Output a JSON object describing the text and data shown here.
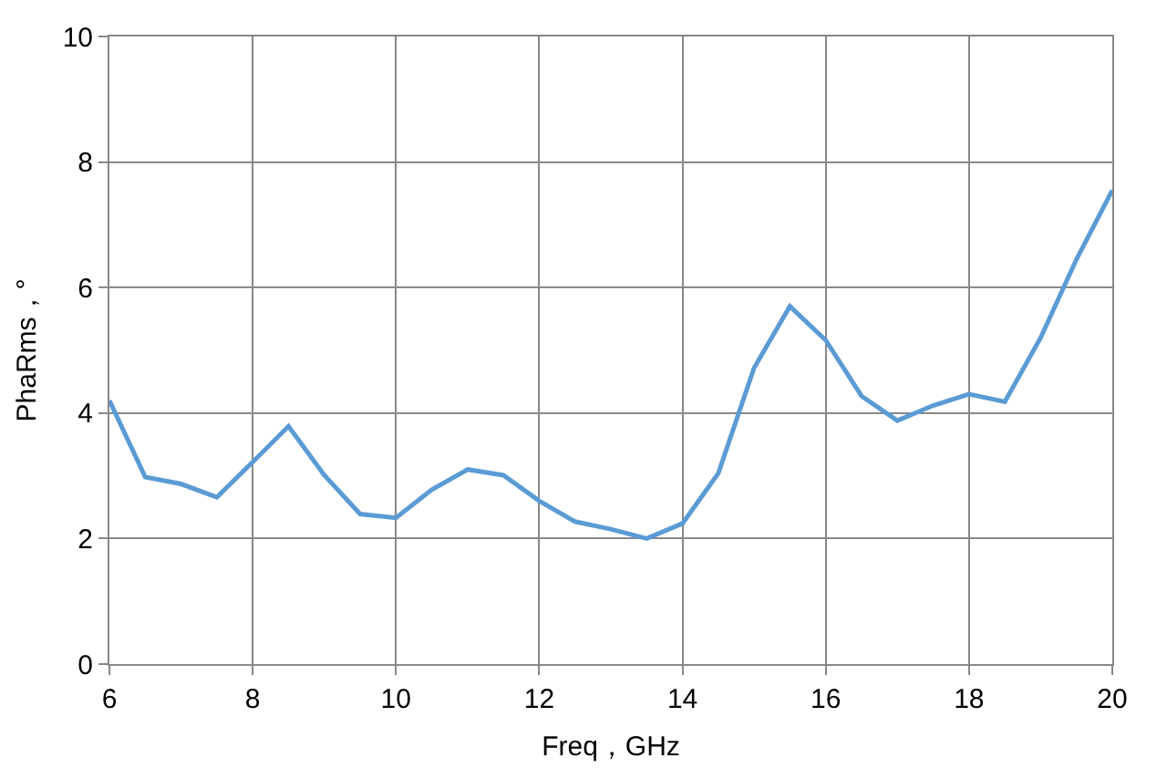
{
  "chart_data": {
    "type": "line",
    "xlabel": "Freq，GHz",
    "ylabel": "PhaRms，°",
    "x": [
      6,
      6.5,
      7,
      7.5,
      8,
      8.5,
      9,
      9.5,
      10,
      10.5,
      11,
      11.5,
      12,
      12.5,
      13,
      13.5,
      14,
      14.5,
      15,
      15.5,
      16,
      16.5,
      17,
      17.5,
      18,
      18.5,
      19,
      19.5,
      20
    ],
    "series": [
      {
        "color": "#5b9bd5",
        "values": [
          4.2,
          2.98,
          2.87,
          2.66,
          3.22,
          3.79,
          3.01,
          2.39,
          2.33,
          2.78,
          3.1,
          3.01,
          2.6,
          2.27,
          2.15,
          2.0,
          2.24,
          3.04,
          4.72,
          5.7,
          5.16,
          4.27,
          3.88,
          4.12,
          4.3,
          4.18,
          5.2,
          6.45,
          7.55
        ]
      }
    ],
    "xlim": [
      6,
      20
    ],
    "xticks": [
      6,
      8,
      10,
      12,
      14,
      16,
      18,
      20
    ],
    "ylim": [
      0,
      10
    ],
    "yticks": [
      0,
      2,
      4,
      6,
      8,
      10
    ],
    "grid": true,
    "legend": false,
    "marker": "none",
    "line_style": "solid"
  }
}
